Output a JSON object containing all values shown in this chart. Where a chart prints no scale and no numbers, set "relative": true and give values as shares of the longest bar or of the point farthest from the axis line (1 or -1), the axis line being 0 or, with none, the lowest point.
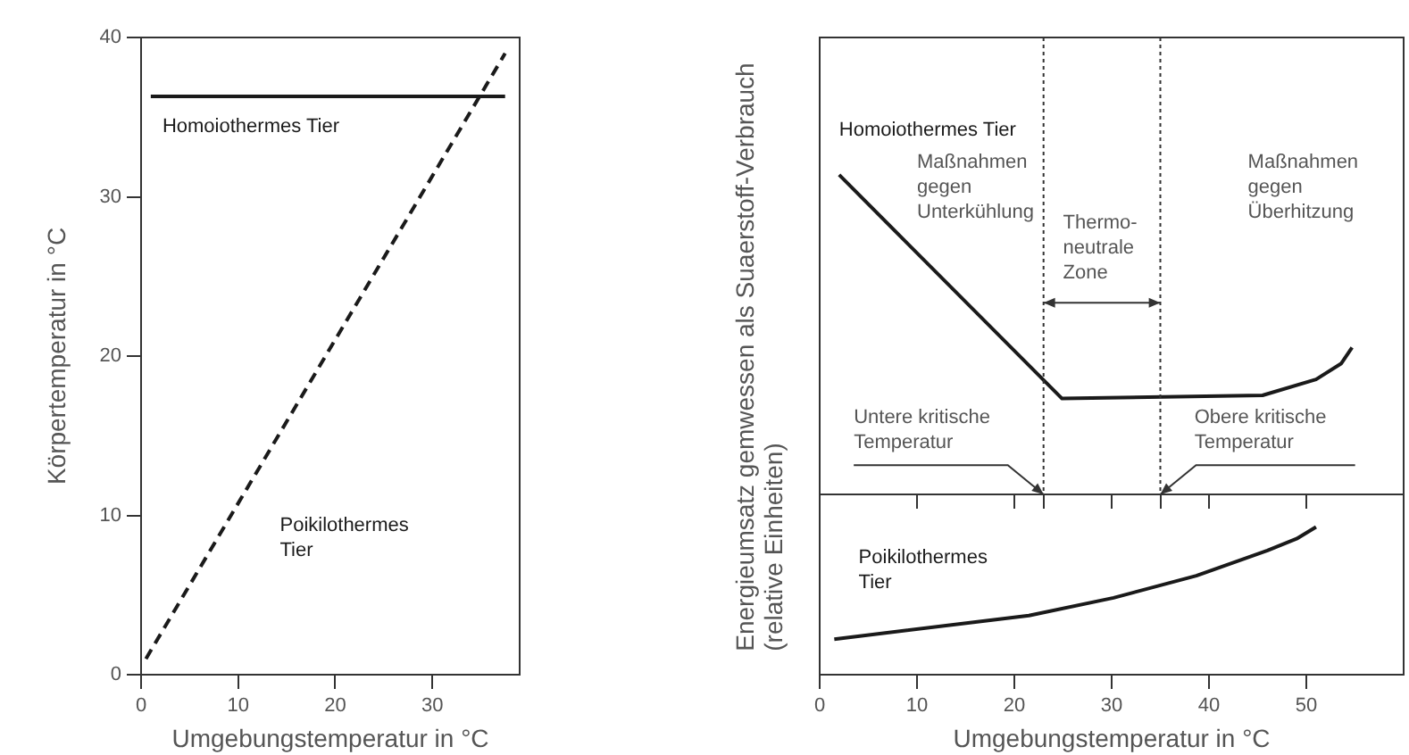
{
  "chart_data": [
    {
      "type": "line",
      "xlabel": "Umgebungstemperatur in °C",
      "ylabel": "Körpertemperatur in °C",
      "xlim": [
        0,
        39
      ],
      "ylim": [
        0,
        40
      ],
      "xticks": [
        0,
        10,
        20,
        30
      ],
      "yticks": [
        0,
        10,
        20,
        30,
        40
      ],
      "series": [
        {
          "name": "Homoiothermes Tier",
          "color": "#1a1a1a",
          "x": [
            1,
            37.5
          ],
          "values": [
            36.3,
            36.3
          ],
          "line_style": "solid"
        },
        {
          "name": "Poikilothermes Tier",
          "color": "#1a1a1a",
          "x": [
            0.5,
            37.5
          ],
          "values": [
            1,
            39
          ],
          "line_style": "dashed"
        }
      ]
    },
    {
      "type": "line",
      "relative": true,
      "ylabel": "Energieumsatz gemwessen als Suaerstoff-Verbrauch\n(relative Einheiten)",
      "xlim": [
        0,
        60
      ],
      "xticks": [
        {
          "value": 10,
          "label": null
        },
        {
          "value": 20,
          "label": null
        },
        {
          "value": 23,
          "label": null
        },
        {
          "value": 30,
          "label": null
        },
        {
          "value": 35,
          "label": null
        },
        {
          "value": 40,
          "label": null
        },
        {
          "value": 50,
          "label": null
        }
      ],
      "tick_labels": false,
      "series": [
        {
          "name": "Homoiothermes Tier",
          "color": "#1a1a1a",
          "x": [
            2,
            24.9,
            45.5,
            51,
            53.6,
            54.7
          ],
          "values": [
            1,
            0.3,
            0.31,
            0.36,
            0.41,
            0.46
          ],
          "line_style": "solid"
        }
      ],
      "ref_lines": [
        {
          "axis": "x",
          "value": 23,
          "label": "Untere kritische\nTemperatur",
          "line_style": "dotted"
        },
        {
          "axis": "x",
          "value": 35,
          "label": "Obere kritische\nTemperatur",
          "line_style": "dotted"
        }
      ],
      "annotations": [
        "Maßnahmen\ngegen\nUnterkühlung",
        "Thermo-\nneutrale\nZone",
        "Maßnahmen\ngegen\nÜberhitzung"
      ]
    },
    {
      "type": "line",
      "relative": true,
      "xlabel": "Umgebungstemperatur in °C",
      "xlim": [
        0,
        60
      ],
      "xticks": [
        0,
        10,
        20,
        30,
        40,
        50
      ],
      "tick_labels": "x",
      "series": [
        {
          "name": "Poikilothermes Tier",
          "color": "#1a1a1a",
          "x": [
            1.5,
            21.5,
            30.2,
            38.7,
            46,
            49,
            51
          ],
          "values": [
            0.24,
            0.4,
            0.52,
            0.67,
            0.84,
            0.92,
            1
          ],
          "line_style": "solid"
        }
      ]
    }
  ]
}
